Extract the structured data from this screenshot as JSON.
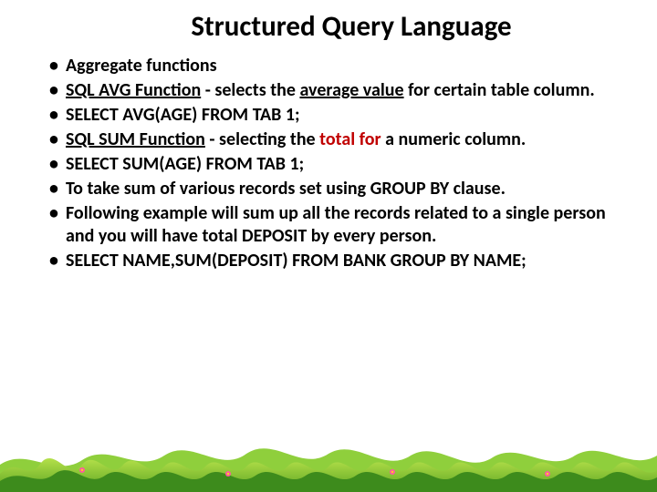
{
  "title": {
    "text": "Structured Query Language",
    "fontsize": 31,
    "color": "#000000"
  },
  "bullets": [
    {
      "html": "Aggregate functions"
    },
    {
      "html": "<span class='u'>SQL AVG Function</span> - selects the <span class='u'>average value</span> for certain table column."
    },
    {
      "html": "SELECT AVG(AGE)  FROM TAB 1;"
    },
    {
      "html": "<span class='u'>SQL SUM Function</span> - selecting the <span class='red'>total for</span> a numeric column."
    },
    {
      "html": "SELECT SUM(AGE) FROM TAB 1;"
    },
    {
      "html": "To take sum of various records set using GROUP BY clause."
    },
    {
      "html": "Following example will sum up all the records related to a single person and you will have total DEPOSIT by every person."
    },
    {
      "html": "SELECT NAME,SUM(DEPOSIT) FROM BANK GROUP BY NAME;"
    }
  ],
  "bullet_fontsize": 20,
  "grass": {
    "light": "#9acd32",
    "mid": "#6fbf2e",
    "dark": "#3d8b1c",
    "flower_petal": "#ff5aa0",
    "flower_center": "#ffd21f"
  }
}
